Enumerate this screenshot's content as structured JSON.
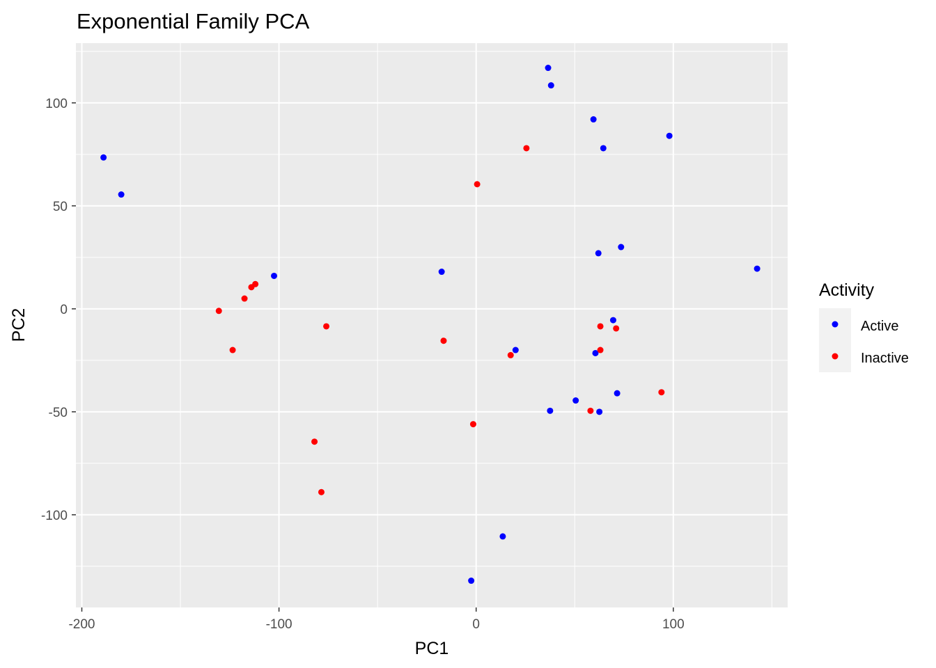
{
  "chart_data": {
    "type": "scatter",
    "title": "Exponential Family PCA",
    "xlabel": "PC1",
    "ylabel": "PC2",
    "xlim": [
      -203,
      158
    ],
    "ylim": [
      -145,
      129
    ],
    "x_ticks": [
      -200,
      -100,
      0,
      100
    ],
    "x_tick_labels": [
      "-200",
      "-100",
      "0",
      "100"
    ],
    "y_ticks": [
      -100,
      -50,
      0,
      50,
      100
    ],
    "y_tick_labels": [
      "-100",
      "-50",
      "0",
      "50",
      "100"
    ],
    "grid": true,
    "legend": {
      "title": "Activity",
      "position": "right"
    },
    "series": [
      {
        "name": "Active",
        "color": "#0000FF",
        "points": [
          {
            "x": -189,
            "y": 73.5
          },
          {
            "x": -180,
            "y": 55.5
          },
          {
            "x": -102.5,
            "y": 16
          },
          {
            "x": -17.5,
            "y": 18
          },
          {
            "x": -2.5,
            "y": -132
          },
          {
            "x": 13.5,
            "y": -110.5
          },
          {
            "x": 20,
            "y": -20
          },
          {
            "x": 36.5,
            "y": 117
          },
          {
            "x": 38,
            "y": 108.5
          },
          {
            "x": 37.5,
            "y": -49.5
          },
          {
            "x": 50.5,
            "y": -44.5
          },
          {
            "x": 59.5,
            "y": 92
          },
          {
            "x": 64.5,
            "y": 78
          },
          {
            "x": 62,
            "y": 27
          },
          {
            "x": 73.5,
            "y": 30
          },
          {
            "x": 69.5,
            "y": -5.5
          },
          {
            "x": 60.5,
            "y": -21.5
          },
          {
            "x": 62.5,
            "y": -50
          },
          {
            "x": 71.5,
            "y": -41
          },
          {
            "x": 98,
            "y": 84
          },
          {
            "x": 142.5,
            "y": 19.5
          }
        ]
      },
      {
        "name": "Inactive",
        "color": "#FF0000",
        "points": [
          {
            "x": -130.5,
            "y": -1
          },
          {
            "x": -123.5,
            "y": -20
          },
          {
            "x": -117.5,
            "y": 5
          },
          {
            "x": -114,
            "y": 10.5
          },
          {
            "x": -112,
            "y": 12
          },
          {
            "x": -76,
            "y": -8.5
          },
          {
            "x": -82,
            "y": -64.5
          },
          {
            "x": -78.5,
            "y": -89
          },
          {
            "x": -16.5,
            "y": -15.5
          },
          {
            "x": 0.5,
            "y": 60.5
          },
          {
            "x": -1.5,
            "y": -56
          },
          {
            "x": 17.5,
            "y": -22.5
          },
          {
            "x": 25.5,
            "y": 78
          },
          {
            "x": 58,
            "y": -49.5
          },
          {
            "x": 63,
            "y": -8.5
          },
          {
            "x": 63,
            "y": -20
          },
          {
            "x": 71,
            "y": -9.5
          },
          {
            "x": 94,
            "y": -40.5
          }
        ]
      }
    ]
  }
}
